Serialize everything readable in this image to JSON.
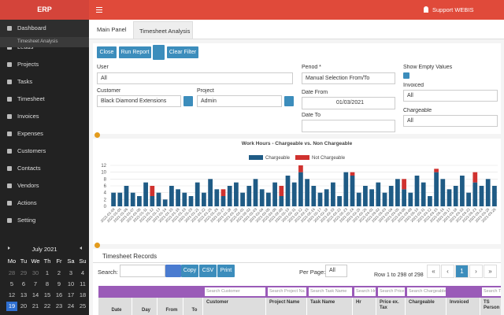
{
  "header": {
    "brand": "ERP",
    "user": "Support WEBIS"
  },
  "sidebar": {
    "menu": [
      "Dashboard",
      "Leads",
      "Projects",
      "Tasks",
      "Timesheet",
      "Invoices",
      "Expenses",
      "Customers",
      "Contacts",
      "Vendors",
      "Actions",
      "Setting"
    ],
    "submenu": "Timesheet Analysis"
  },
  "calendar": {
    "title": "July 2021",
    "weekdays": [
      "Mo",
      "Tu",
      "We",
      "Th",
      "Fr",
      "Sa",
      "Su"
    ],
    "days": [
      [
        "28",
        "29",
        "30",
        "1",
        "2",
        "3",
        "4"
      ],
      [
        "5",
        "6",
        "7",
        "8",
        "9",
        "10",
        "11"
      ],
      [
        "12",
        "13",
        "14",
        "15",
        "16",
        "17",
        "18"
      ],
      [
        "19",
        "20",
        "21",
        "22",
        "23",
        "24",
        "25"
      ]
    ],
    "today": "19"
  },
  "tabs": [
    "Main Panel",
    "Timesheet Analysis"
  ],
  "buttons": {
    "close": "Close",
    "run": "Run Report",
    "clear": "Clear Filter"
  },
  "form": {
    "user_label": "User",
    "user": "All",
    "customer_label": "Customer",
    "customer": "Black Diamond Extensions",
    "project_label": "Project",
    "project": "Admin",
    "period_label": "Period *",
    "period": "Manual Selection From/To",
    "date_from_label": "Date From",
    "date_from": "01/03/2021",
    "date_to_label": "Date To",
    "empty_label": "Show Empty Values",
    "invoiced_label": "Invoiced",
    "invoiced": "All",
    "chargeable_label": "Chargeable",
    "chargeable": "All"
  },
  "chart_data": {
    "type": "bar",
    "stacked": true,
    "title": "Work Hours - Chargeable vs. Non Chargeable",
    "categories": [
      "2021-01-04",
      "2021-01-05",
      "2021-01-06",
      "2021-01-07",
      "2021-01-08",
      "2021-01-11",
      "2021-01-12",
      "2021-01-13",
      "2021-01-14",
      "2021-01-15",
      "2021-01-18",
      "2021-01-19",
      "2021-01-20",
      "2021-01-21",
      "2021-01-22",
      "2021-01-25",
      "2021-01-26",
      "2021-01-27",
      "2021-01-28",
      "2021-01-29",
      "2021-02-01",
      "2021-02-02",
      "2021-02-03",
      "2021-02-04",
      "2021-02-05",
      "2021-02-08",
      "2021-02-09",
      "2021-02-10",
      "2021-02-11",
      "2021-02-12",
      "2021-02-15",
      "2021-02-16",
      "2021-02-17",
      "2021-02-18",
      "2021-02-19",
      "2021-02-22",
      "2021-02-23",
      "2021-02-24",
      "2021-02-25",
      "2021-02-26",
      "2021-03-01",
      "2021-03-02",
      "2021-03-03",
      "2021-03-04",
      "2021-03-05",
      "2021-03-08",
      "2021-03-09",
      "2021-03-10",
      "2021-03-11",
      "2021-03-12",
      "2021-03-15",
      "2021-03-16",
      "2021-03-17",
      "2021-03-18",
      "2021-03-19",
      "2021-03-22",
      "2021-03-23",
      "2021-03-24",
      "2021-03-25",
      "2021-03-26"
    ],
    "series": [
      {
        "name": "Chargeable",
        "color": "#1f5b85",
        "values": [
          4,
          4,
          6,
          4,
          3,
          7,
          3,
          4,
          2,
          6,
          5,
          4,
          3,
          7,
          4,
          8,
          5,
          3,
          6,
          7,
          4,
          6,
          8,
          5,
          4,
          7,
          3,
          9,
          7,
          10,
          8,
          6,
          4,
          5,
          7,
          3,
          10,
          9,
          4,
          6,
          5,
          7,
          4,
          6,
          8,
          5,
          4,
          9,
          7,
          3,
          10,
          8,
          5,
          6,
          9,
          4,
          7,
          6,
          8,
          6
        ]
      },
      {
        "name": "Not Chargeable",
        "color": "#d0322f",
        "values": [
          0,
          0,
          0,
          0,
          0,
          0,
          3,
          0,
          0,
          0,
          0,
          0,
          0,
          0,
          0,
          0,
          0,
          2,
          0,
          0,
          0,
          0,
          0,
          0,
          0,
          0,
          3,
          0,
          0,
          2,
          0,
          0,
          0,
          0,
          0,
          0,
          0,
          1,
          0,
          0,
          0,
          0,
          0,
          0,
          0,
          3,
          0,
          0,
          0,
          0,
          1,
          0,
          0,
          0,
          0,
          0,
          3,
          0,
          0,
          0
        ]
      }
    ],
    "ylim": [
      0,
      12
    ],
    "yticks": [
      0,
      2,
      4,
      6,
      8,
      10,
      12
    ],
    "grid": true
  },
  "records": {
    "title": "Timesheet Records",
    "search_label": "Search:",
    "tools": [
      "Copy",
      "CSV",
      "Print"
    ],
    "per_page_label": "Per Page:",
    "per_page": "All",
    "row_info": "Row 1 to 298 of 298",
    "pager": [
      "«",
      "‹",
      "1",
      "›",
      "»"
    ],
    "columns": [
      "Date",
      "Day",
      "From",
      "To",
      "Customer",
      "Project Name",
      "Task Name",
      "Hr",
      "Price ex. Tax",
      "Chargeable",
      "Invoiced",
      "TS Person"
    ],
    "search": [
      "Search Customer",
      "Search Project Na",
      "Search Task Name",
      "Search Hr",
      "Search Price",
      "Search Chargeable",
      "Search TS"
    ]
  }
}
